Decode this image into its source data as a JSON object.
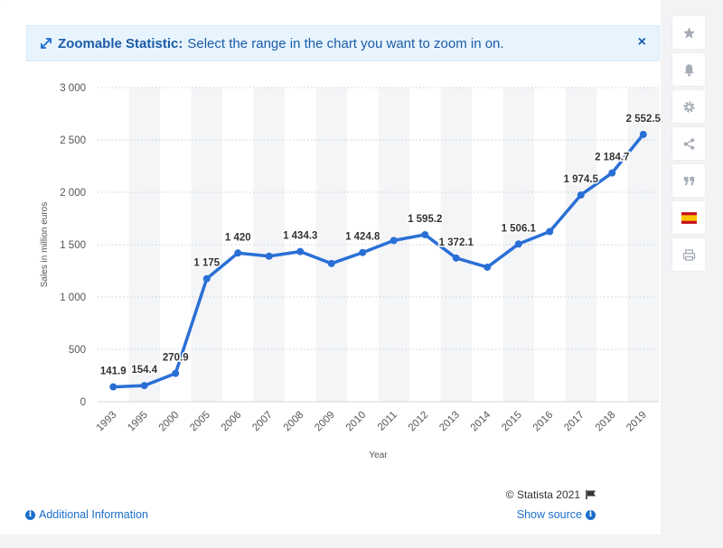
{
  "banner": {
    "title": "Zoomable Statistic:",
    "text": "Select the range in the chart you want to zoom in on.",
    "close": "×"
  },
  "footer": {
    "additional_info": "Additional Information",
    "show_source": "Show source",
    "copyright": "© Statista 2021"
  },
  "sidebar": {
    "icons": [
      "star-icon",
      "bell-icon",
      "gear-icon",
      "share-icon",
      "quote-icon",
      "spain-flag-icon",
      "print-icon"
    ]
  },
  "colors": {
    "line": "#2a6fd6",
    "accent": "#1a6ecc"
  },
  "chart_data": {
    "type": "line",
    "xlabel": "Year",
    "ylabel": "Sales in million euros",
    "ylim": [
      0,
      3000
    ],
    "yticks": [
      0,
      500,
      1000,
      1500,
      2000,
      2500,
      3000
    ],
    "ytick_labels": [
      "0",
      "500",
      "1 000",
      "1 500",
      "2 000",
      "2 500",
      "3 000"
    ],
    "grid": true,
    "categories": [
      "1993",
      "1995",
      "2000",
      "2005",
      "2006",
      "2007",
      "2008",
      "2009",
      "2010",
      "2011",
      "2012",
      "2013",
      "2014",
      "2015",
      "2016",
      "2017",
      "2018",
      "2019"
    ],
    "values": [
      141.9,
      154.4,
      270.9,
      1175,
      1420,
      1390,
      1434.3,
      1320,
      1424.8,
      1540,
      1595.2,
      1372.1,
      1285,
      1506.1,
      1625,
      1974.5,
      2184.7,
      2552.5
    ],
    "data_labels": [
      "141.9",
      "154.4",
      "270.9",
      "1 175",
      "1 420",
      "",
      "1 434.3",
      "",
      "1 424.8",
      "",
      "1 595.2",
      "1 372.1",
      "",
      "1 506.1",
      "",
      "1 974.5",
      "2 184.7",
      "2 552.5"
    ]
  }
}
